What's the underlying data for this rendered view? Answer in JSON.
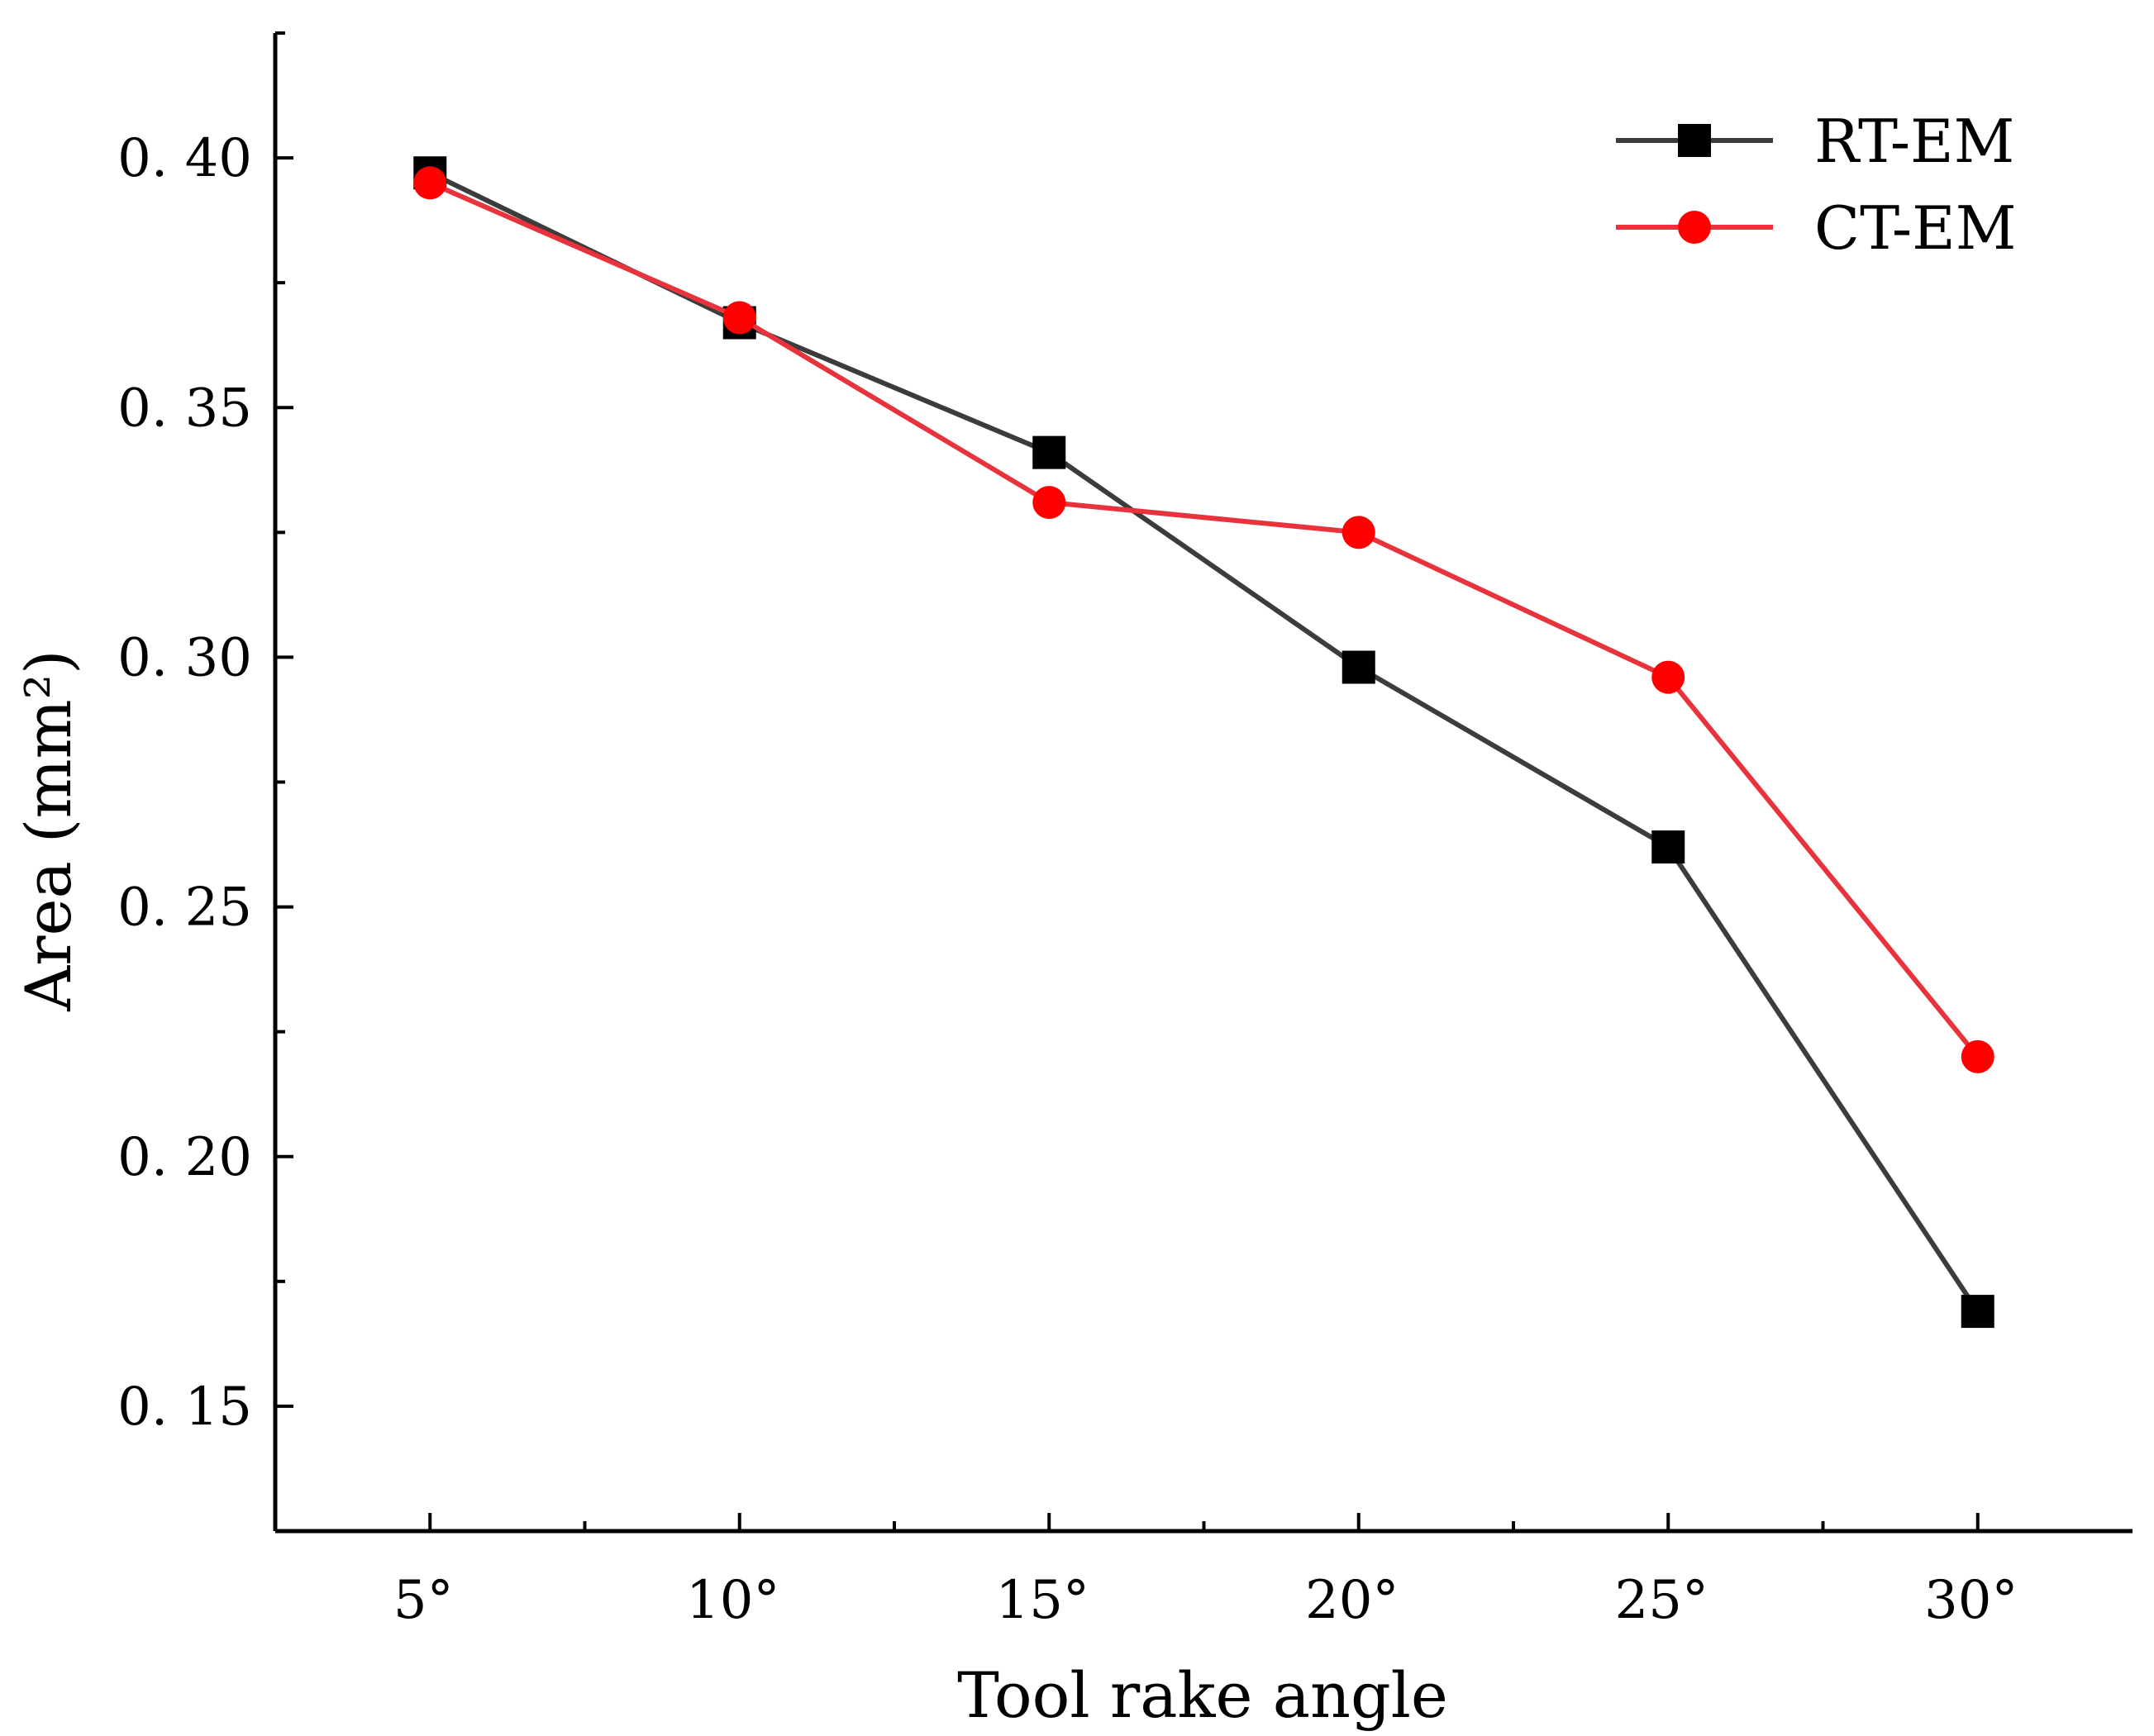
{
  "chart_data": {
    "type": "line",
    "title": "",
    "xlabel": "Tool rake angle",
    "ylabel": "Area",
    "ylabel_unit": "(mm²)",
    "categories": [
      "5°",
      "10°",
      "15°",
      "20°",
      "25°",
      "30°"
    ],
    "x": [
      5,
      10,
      15,
      20,
      25,
      30
    ],
    "xlim": [
      2.5,
      32.5
    ],
    "ylim": [
      0.125,
      0.425
    ],
    "yticks": [
      0.15,
      0.2,
      0.25,
      0.3,
      0.35,
      0.4
    ],
    "ytick_labels": [
      "0. 15",
      "0. 20",
      "0. 25",
      "0. 30",
      "0. 35",
      "0. 40"
    ],
    "grid": false,
    "legend_position": "top-right",
    "series": [
      {
        "name": "RT-EM",
        "color": "#3c3c3c",
        "marker_color": "#000000",
        "marker": "square",
        "values": [
          0.397,
          0.367,
          0.341,
          0.298,
          0.262,
          0.169
        ]
      },
      {
        "name": "CT-EM",
        "color": "#e8323c",
        "marker_color": "#ff0000",
        "marker": "circle",
        "values": [
          0.395,
          0.368,
          0.331,
          0.325,
          0.296,
          0.22
        ]
      }
    ]
  }
}
